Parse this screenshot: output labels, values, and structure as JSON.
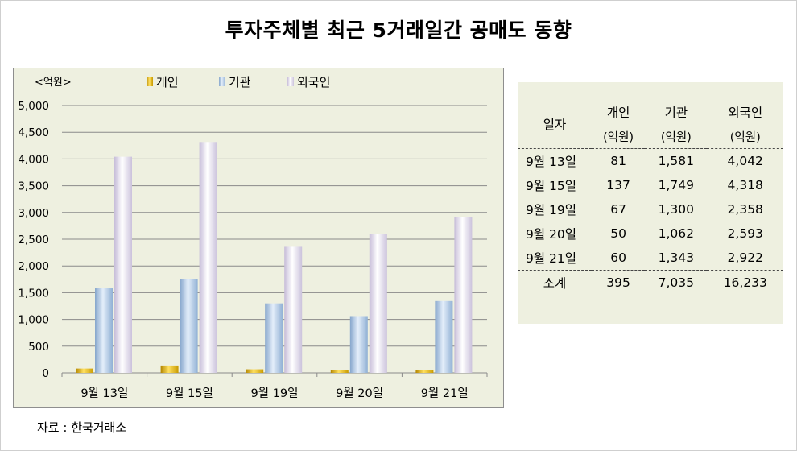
{
  "title": "투자주체별 최근 5거래일간 공매도 동향",
  "source": "자료 : 한국거래소",
  "colors": {
    "individual": "#f2c200",
    "institution": "#a8c6e8",
    "foreign": "#e6e0f0",
    "panel": "#eef0e0"
  },
  "chart_data": {
    "type": "bar",
    "unit_label": "<억원>",
    "categories": [
      "9월 13일",
      "9월 15일",
      "9월 19일",
      "9월 20일",
      "9월 21일"
    ],
    "series": [
      {
        "name": "개인",
        "values": [
          81,
          137,
          67,
          50,
          60
        ]
      },
      {
        "name": "기관",
        "values": [
          1581,
          1749,
          1300,
          1062,
          1343
        ]
      },
      {
        "name": "외국인",
        "values": [
          4042,
          4318,
          2358,
          2593,
          2922
        ]
      }
    ],
    "ylim": [
      0,
      5000
    ],
    "yticks": [
      "0",
      "500",
      "1,000",
      "1,500",
      "2,000",
      "2,500",
      "3,000",
      "3,500",
      "4,000",
      "4,500",
      "5,000"
    ],
    "grid": true,
    "legend": "top"
  },
  "table": {
    "headers": [
      "일자",
      "개인",
      "기관",
      "외국인"
    ],
    "subheaders": [
      "(억원)",
      "(억원)",
      "(억원)"
    ],
    "rows": [
      [
        "9월 13일",
        "81",
        "1,581",
        "4,042"
      ],
      [
        "9월 15일",
        "137",
        "1,749",
        "4,318"
      ],
      [
        "9월 19일",
        "67",
        "1,300",
        "2,358"
      ],
      [
        "9월 20일",
        "50",
        "1,062",
        "2,593"
      ],
      [
        "9월 21일",
        "60",
        "1,343",
        "2,922"
      ]
    ],
    "total": [
      "소계",
      "395",
      "7,035",
      "16,233"
    ]
  }
}
